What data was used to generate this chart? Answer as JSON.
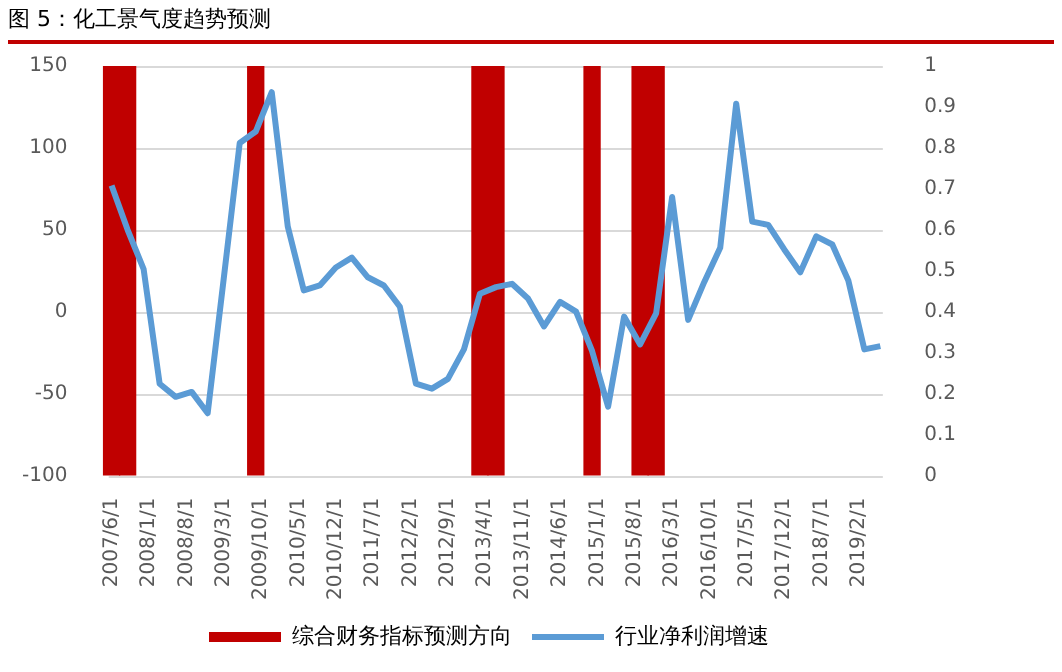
{
  "chart_data": {
    "type": "line",
    "title": "图 5：化工景气度趋势预测",
    "xlim": [
      "2007-05-15",
      "2019-06-15"
    ],
    "xticks": [
      {
        "value": "2007-06",
        "label": "2007/6/1"
      },
      {
        "value": "2008-01",
        "label": "2008/1/1"
      },
      {
        "value": "2008-08",
        "label": "2008/8/1"
      },
      {
        "value": "2009-03",
        "label": "2009/3/1"
      },
      {
        "value": "2009-10",
        "label": "2009/10/1"
      },
      {
        "value": "2010-05",
        "label": "2010/5/1"
      },
      {
        "value": "2010-12",
        "label": "2010/12/1"
      },
      {
        "value": "2011-07",
        "label": "2011/7/1"
      },
      {
        "value": "2012-02",
        "label": "2012/2/1"
      },
      {
        "value": "2012-09",
        "label": "2012/9/1"
      },
      {
        "value": "2013-04",
        "label": "2013/4/1"
      },
      {
        "value": "2013-11",
        "label": "2013/11/1"
      },
      {
        "value": "2014-06",
        "label": "2014/6/1"
      },
      {
        "value": "2015-01",
        "label": "2015/1/1"
      },
      {
        "value": "2015-08",
        "label": "2015/8/1"
      },
      {
        "value": "2016-03",
        "label": "2016/3/1"
      },
      {
        "value": "2016-10",
        "label": "2016/10/1"
      },
      {
        "value": "2017-05",
        "label": "2017/5/1"
      },
      {
        "value": "2017-12",
        "label": "2017/12/1"
      },
      {
        "value": "2018-07",
        "label": "2018/7/1"
      },
      {
        "value": "2019-02",
        "label": "2019/2/1"
      }
    ],
    "ylim": [
      -100,
      150
    ],
    "yticks": [
      -100,
      -50,
      0,
      50,
      100,
      150
    ],
    "y2lim": [
      0,
      1
    ],
    "y2ticks": [
      0,
      0.1,
      0.2,
      0.3,
      0.4,
      0.5,
      0.6,
      0.7,
      0.8,
      0.9,
      1
    ],
    "grid": "y",
    "legend": "bottom",
    "marker": "none",
    "series": [
      {
        "name": "综合财务指标预测方向",
        "type": "bar",
        "axis": "y2",
        "color": "#c00000",
        "x": [
          "2007-06",
          "2007-09",
          "2009-09",
          "2013-03",
          "2013-06",
          "2014-12",
          "2015-09",
          "2015-12"
        ],
        "values": [
          1,
          1,
          1,
          1,
          1,
          1,
          1,
          1
        ]
      },
      {
        "name": "行业净利润增速",
        "axis": "y",
        "color": "#5b9bd5",
        "x": [
          "2007-06",
          "2007-09",
          "2007-12",
          "2008-03",
          "2008-06",
          "2008-09",
          "2008-12",
          "2009-03",
          "2009-06",
          "2009-09",
          "2009-12",
          "2010-03",
          "2010-06",
          "2010-09",
          "2010-12",
          "2011-03",
          "2011-06",
          "2011-09",
          "2011-12",
          "2012-03",
          "2012-06",
          "2012-09",
          "2012-12",
          "2013-03",
          "2013-06",
          "2013-09",
          "2013-12",
          "2014-03",
          "2014-06",
          "2014-09",
          "2014-12",
          "2015-03",
          "2015-06",
          "2015-09",
          "2015-12",
          "2016-03",
          "2016-06",
          "2016-09",
          "2016-12",
          "2017-03",
          "2017-06",
          "2017-09",
          "2017-12",
          "2018-03",
          "2018-06",
          "2018-09",
          "2018-12",
          "2019-03",
          "2019-06"
        ],
        "values": [
          77,
          50,
          26,
          -44,
          -52,
          -49,
          -62,
          20,
          103,
          110,
          134,
          52,
          13,
          16,
          27,
          33,
          21,
          16,
          3,
          -44,
          -47,
          -41,
          -23,
          11,
          15,
          17,
          8,
          -9,
          6,
          0,
          -24,
          -58,
          -3,
          -20,
          -1,
          70,
          -5,
          18,
          39,
          127,
          55,
          53,
          38,
          24,
          46,
          41,
          19,
          -23,
          -21
        ]
      }
    ]
  }
}
